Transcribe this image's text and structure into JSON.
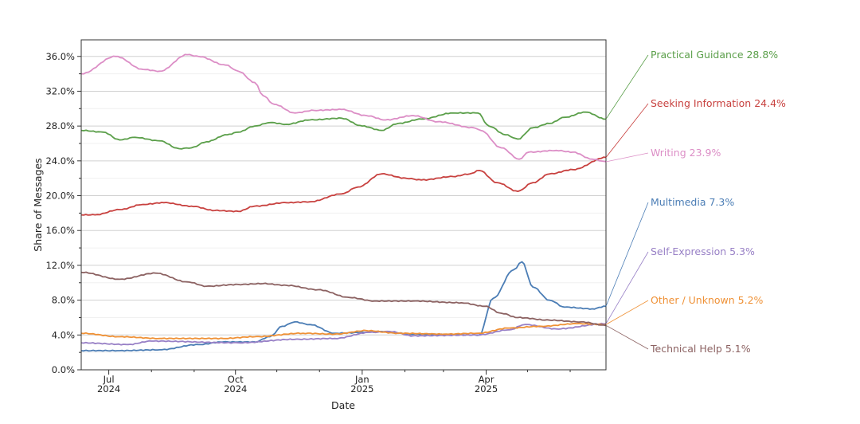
{
  "chart_data": {
    "type": "line",
    "title": "",
    "xlabel": "Date",
    "ylabel": "Share of Messages",
    "x_unit": "days since start_date",
    "start_date": "2024-06-11",
    "xlim": [
      0,
      381
    ],
    "ylim": [
      0,
      37.9
    ],
    "grid": true,
    "y_ticks": [
      0,
      4,
      8,
      12,
      16,
      20,
      24,
      28,
      32,
      36
    ],
    "y_tick_labels": [
      "0.0%",
      "4.0%",
      "8.0%",
      "12.0%",
      "16.0%",
      "20.0%",
      "24.0%",
      "28.0%",
      "32.0%",
      "36.0%"
    ],
    "x_ticks": [
      {
        "day": 20,
        "label": "Jul",
        "sublabel": "2024"
      },
      {
        "day": 112,
        "label": "Oct",
        "sublabel": "2024"
      },
      {
        "day": 204,
        "label": "Jan",
        "sublabel": "2025"
      },
      {
        "day": 294,
        "label": "Apr",
        "sublabel": "2025"
      }
    ],
    "x_minor_ticks": [
      51,
      82,
      142,
      173,
      235,
      263,
      324,
      355
    ],
    "legend_placement": "right (direct labels)",
    "series": [
      {
        "name": "Practical Guidance",
        "end_label": "28.8%",
        "color": "#5b9f4a",
        "x": [
          0,
          16,
          28,
          39,
          57,
          71,
          80,
          91,
          106,
          114,
          126,
          137,
          149,
          166,
          189,
          204,
          218,
          230,
          247,
          270,
          288,
          296,
          308,
          317,
          328,
          340,
          351,
          366,
          381
        ],
        "y": [
          27.5,
          27.3,
          26.4,
          26.7,
          26.3,
          25.4,
          25.5,
          26.2,
          27.0,
          27.3,
          28.0,
          28.4,
          28.2,
          28.7,
          28.9,
          28.0,
          27.5,
          28.3,
          28.8,
          29.5,
          29.5,
          28.0,
          27.0,
          26.5,
          27.8,
          28.3,
          29.0,
          29.6,
          28.8
        ]
      },
      {
        "name": "Seeking Information",
        "end_label": "24.4%",
        "color": "#c8413f",
        "x": [
          0,
          10,
          28,
          45,
          60,
          80,
          97,
          114,
          126,
          149,
          166,
          189,
          201,
          218,
          236,
          247,
          270,
          282,
          289,
          302,
          317,
          328,
          340,
          357,
          381
        ],
        "y": [
          17.8,
          17.8,
          18.4,
          19.0,
          19.2,
          18.8,
          18.3,
          18.2,
          18.8,
          19.2,
          19.3,
          20.2,
          21.0,
          22.5,
          22.0,
          21.8,
          22.2,
          22.5,
          22.9,
          21.5,
          20.5,
          21.5,
          22.5,
          23.0,
          24.4
        ]
      },
      {
        "name": "Writing",
        "end_label": "23.9%",
        "color": "#dc8ec6",
        "x": [
          0,
          25,
          45,
          57,
          77,
          85,
          105,
          114,
          126,
          132,
          140,
          155,
          169,
          189,
          207,
          221,
          241,
          259,
          285,
          290,
          305,
          318,
          325,
          345,
          357,
          371,
          381
        ],
        "y": [
          34.0,
          36.0,
          34.5,
          34.3,
          36.2,
          36.0,
          35.0,
          34.3,
          33.0,
          31.5,
          30.5,
          29.5,
          29.8,
          29.9,
          29.2,
          28.7,
          29.2,
          28.5,
          27.8,
          27.5,
          25.5,
          24.2,
          25.0,
          25.2,
          25.0,
          24.2,
          23.9
        ]
      },
      {
        "name": "Multimedia",
        "end_label": "7.3%",
        "color": "#4b7db5",
        "x": [
          0,
          28,
          57,
          85,
          103,
          126,
          137,
          146,
          155,
          166,
          184,
          207,
          218,
          241,
          289,
          299,
          314,
          320,
          328,
          340,
          351,
          371,
          381
        ],
        "y": [
          2.2,
          2.2,
          2.3,
          2.9,
          3.2,
          3.2,
          3.8,
          5.0,
          5.5,
          5.2,
          4.2,
          4.3,
          4.4,
          4.1,
          4.0,
          8.2,
          11.5,
          12.4,
          9.5,
          8.0,
          7.2,
          7.0,
          7.3
        ]
      },
      {
        "name": "Self-Expression",
        "end_label": "5.3%",
        "color": "#9880c6",
        "x": [
          0,
          34,
          51,
          114,
          155,
          184,
          210,
          224,
          241,
          288,
          311,
          322,
          345,
          381
        ],
        "y": [
          3.1,
          2.9,
          3.3,
          3.1,
          3.5,
          3.6,
          4.3,
          4.4,
          3.9,
          4.0,
          4.6,
          5.2,
          4.7,
          5.3
        ]
      },
      {
        "name": "Other / Unknown",
        "end_label": "5.2%",
        "color": "#ef9136",
        "x": [
          0,
          28,
          57,
          103,
          126,
          161,
          184,
          207,
          230,
          265,
          288,
          311,
          334,
          360,
          381
        ],
        "y": [
          4.2,
          3.8,
          3.6,
          3.6,
          3.8,
          4.2,
          4.1,
          4.5,
          4.2,
          4.1,
          4.2,
          4.8,
          5.0,
          5.3,
          5.2
        ]
      },
      {
        "name": "Technical Help",
        "end_label": "5.1%",
        "color": "#8c6262",
        "x": [
          0,
          28,
          54,
          77,
          91,
          114,
          132,
          149,
          172,
          195,
          213,
          241,
          276,
          293,
          305,
          317,
          340,
          363,
          381
        ],
        "y": [
          11.2,
          10.4,
          11.1,
          10.1,
          9.6,
          9.8,
          9.9,
          9.7,
          9.2,
          8.3,
          7.9,
          7.9,
          7.7,
          7.3,
          6.5,
          6.0,
          5.7,
          5.5,
          5.1
        ]
      }
    ]
  }
}
